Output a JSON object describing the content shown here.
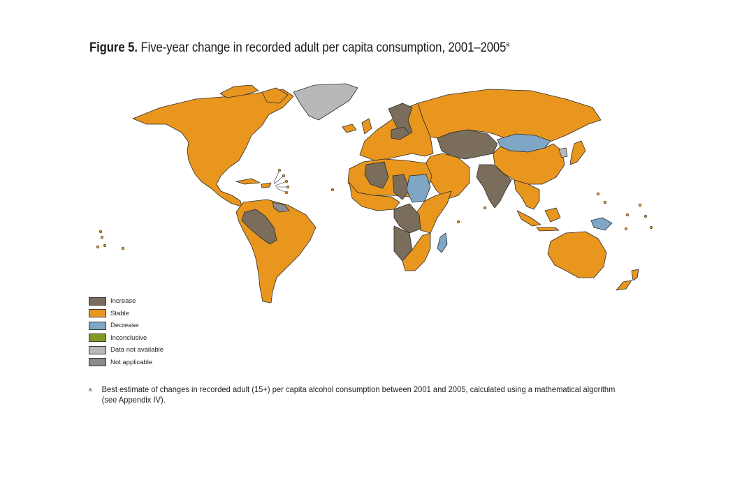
{
  "figure": {
    "title_lead": "Figure 5.",
    "title_text": " Five-year change in recorded adult per capita consumption, 2001–2005",
    "title_sup": "a"
  },
  "colors": {
    "increase": "#7a6d5b",
    "stable": "#e8961e",
    "decrease": "#7fa6c5",
    "inconclusive": "#7f9a1f",
    "data_not_available": "#b8b8b8",
    "not_applicable": "#8c8c8c",
    "border": "#2b2b2b"
  },
  "legend": [
    {
      "key": "increase",
      "label": "Increase"
    },
    {
      "key": "stable",
      "label": "Stable"
    },
    {
      "key": "decrease",
      "label": "Decrease"
    },
    {
      "key": "inconclusive",
      "label": "Inconclusive"
    },
    {
      "key": "data_not_available",
      "label": "Data not available"
    },
    {
      "key": "not_applicable",
      "label": "Not applicable"
    }
  ],
  "regions": {
    "north_america": "stable",
    "greenland": "data_not_available",
    "caribbean_islands": "stable",
    "south_america": "stable",
    "andes_west": "increase",
    "guianas": "not_applicable",
    "europe": "stable",
    "scandinavia_east": "increase",
    "russia": "stable",
    "mongolia": "decrease",
    "central_asia": "increase",
    "china": "stable",
    "korea": "data_not_available",
    "japan": "stable",
    "middle_east": "stable",
    "south_asia": "increase",
    "southeast_asia": "stable",
    "indonesia": "stable",
    "papua_new_guinea": "decrease",
    "north_africa": "stable",
    "algeria": "increase",
    "west_africa": "stable",
    "sudan": "decrease",
    "chad": "increase",
    "central_africa": "increase",
    "east_africa": "stable",
    "angola": "increase",
    "southern_africa": "stable",
    "madagascar": "decrease",
    "australia": "stable",
    "new_zealand": "stable",
    "pacific_islands": "stable"
  },
  "footnote": {
    "mark": "a",
    "text": "Best estimate of changes in recorded adult (15+) per capita alcohol consumption between 2001 and 2005, calculated using a mathematical algorithm (see Appendix IV)."
  }
}
